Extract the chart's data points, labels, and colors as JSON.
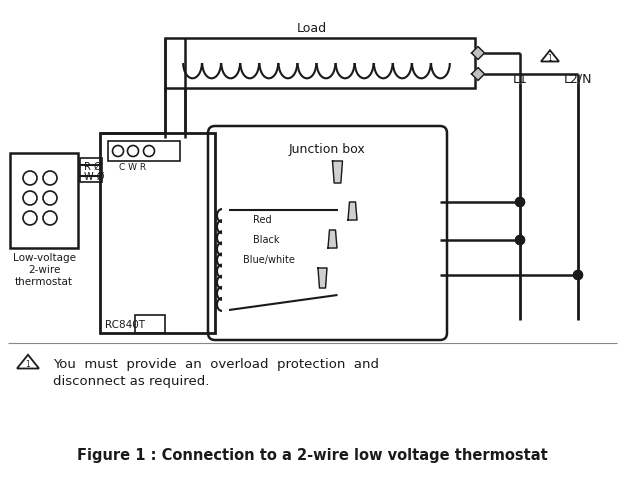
{
  "title": "Figure 1 : Connection to a 2-wire low voltage thermostat",
  "warning_line1": "You  must  provide  an  overload  protection  and",
  "warning_line2": "disconnect as required.",
  "load_label": "Load",
  "junction_box_label": "Junction box",
  "thermostat_lines": [
    "Low-voltage",
    "2-wire",
    "thermostat"
  ],
  "rc840t_label": "RC840T",
  "cwr_label": "C W R",
  "L1_label": "L1",
  "L2N_label": "L2/N",
  "RW_labels": [
    "R Ø",
    "W Ø"
  ],
  "wire_labels": [
    "Red",
    "Black",
    "Blue/white"
  ],
  "bg_color": "#ffffff",
  "lc": "#1a1a1a",
  "fig_width": 6.25,
  "fig_height": 4.87,
  "dpi": 100
}
